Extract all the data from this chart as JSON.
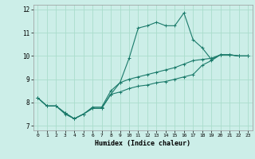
{
  "title": "",
  "xlabel": "Humidex (Indice chaleur)",
  "ylabel": "",
  "background_color": "#cceee8",
  "grid_color": "#aaddcc",
  "line_color": "#1a7a6a",
  "xlim": [
    -0.5,
    23.5
  ],
  "ylim": [
    6.8,
    12.2
  ],
  "yticks": [
    7,
    8,
    9,
    10,
    11,
    12
  ],
  "xticks": [
    0,
    1,
    2,
    3,
    4,
    5,
    6,
    7,
    8,
    9,
    10,
    11,
    12,
    13,
    14,
    15,
    16,
    17,
    18,
    19,
    20,
    21,
    22,
    23
  ],
  "line1_x": [
    0,
    1,
    2,
    3,
    4,
    5,
    6,
    7,
    8,
    9,
    10,
    11,
    12,
    13,
    14,
    15,
    16,
    17,
    18,
    19,
    20,
    21,
    22,
    23
  ],
  "line1_y": [
    8.2,
    7.85,
    7.85,
    7.55,
    7.3,
    7.5,
    7.75,
    7.75,
    8.35,
    8.45,
    8.6,
    8.7,
    8.75,
    8.85,
    8.9,
    9.0,
    9.1,
    9.2,
    9.6,
    9.8,
    10.05,
    10.05,
    10.0,
    10.0
  ],
  "line2_x": [
    0,
    1,
    2,
    3,
    4,
    5,
    6,
    7,
    8,
    9,
    10,
    11,
    12,
    13,
    14,
    15,
    16,
    17,
    18,
    19,
    20,
    21,
    22,
    23
  ],
  "line2_y": [
    8.2,
    7.85,
    7.85,
    7.55,
    7.3,
    7.5,
    7.75,
    7.75,
    8.35,
    8.85,
    9.9,
    11.2,
    11.3,
    11.45,
    11.3,
    11.3,
    11.85,
    10.7,
    10.35,
    9.85,
    10.05,
    10.05,
    10.0,
    10.0
  ],
  "line3_x": [
    0,
    1,
    2,
    3,
    4,
    5,
    6,
    7,
    8,
    9,
    10,
    11,
    12,
    13,
    14,
    15,
    16,
    17,
    18,
    19,
    20,
    21,
    22,
    23
  ],
  "line3_y": [
    8.2,
    7.85,
    7.85,
    7.5,
    7.3,
    7.5,
    7.8,
    7.8,
    8.5,
    8.85,
    9.0,
    9.1,
    9.2,
    9.3,
    9.4,
    9.5,
    9.65,
    9.8,
    9.85,
    9.9,
    10.05,
    10.05,
    10.0,
    10.0
  ]
}
